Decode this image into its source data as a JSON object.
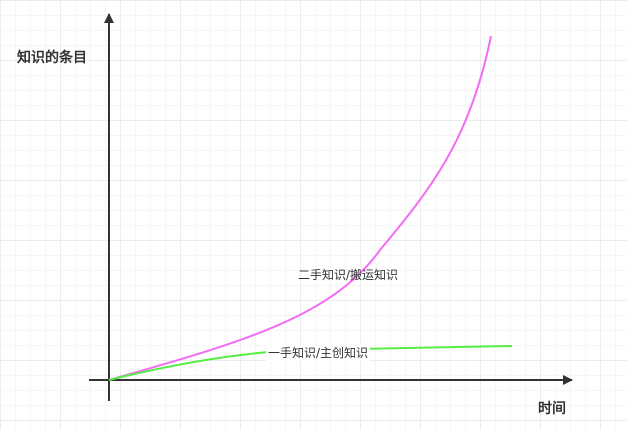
{
  "axes": {
    "y_title": "知识的条目",
    "x_title": "时间"
  },
  "curves": [
    {
      "label": "二手知识/搬运知识",
      "color": "#f26cf5"
    },
    {
      "label": "一手知识/主创知识",
      "color": "#55ee44"
    }
  ],
  "colors": {
    "axis": "#333333",
    "grid_major": "#ececec",
    "grid_minor": "#f6f6f6"
  }
}
